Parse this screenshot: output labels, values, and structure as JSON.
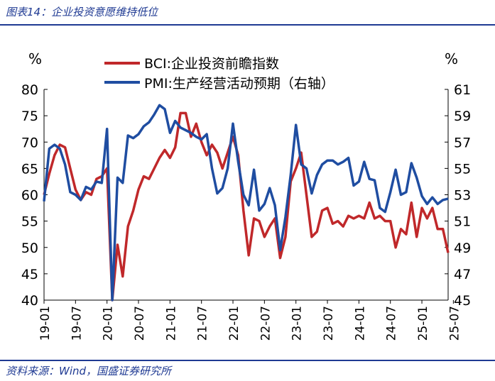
{
  "header": {
    "title": "图表14：企业投资意愿维持低位"
  },
  "footer": {
    "source": "资料来源：Wind，国盛证券研究所"
  },
  "colors": {
    "accent": "#1f3a93",
    "bci": "#c0282a",
    "pmi": "#1f4da1"
  },
  "chart_data": {
    "type": "line",
    "left_unit": "%",
    "right_unit": "%",
    "x_ticks": [
      "19-01",
      "19-07",
      "20-01",
      "20-07",
      "21-01",
      "21-07",
      "22-01",
      "22-07",
      "23-01",
      "23-07",
      "24-01",
      "24-07",
      "25-01",
      "25-07"
    ],
    "left_axis": {
      "ylim": [
        40,
        80
      ],
      "ticks": [
        40,
        45,
        50,
        55,
        60,
        65,
        70,
        75,
        80
      ]
    },
    "right_axis": {
      "ylim": [
        45,
        61
      ],
      "ticks": [
        45,
        47,
        49,
        51,
        53,
        55,
        57,
        59,
        61
      ]
    },
    "grid": false,
    "legend_position": "top-center",
    "series": [
      {
        "name": "BCI:企业投资前瞻指数",
        "axis": "left",
        "values": [
          60,
          64,
          67.5,
          69.5,
          69,
          65,
          61,
          59,
          60.5,
          60,
          63,
          63.5,
          65,
          39,
          50.5,
          44.5,
          54,
          57,
          61,
          63.5,
          63,
          65,
          67,
          68.5,
          67,
          69,
          75.5,
          75.5,
          71,
          73.5,
          70,
          67.5,
          69.5,
          68,
          65,
          68,
          71,
          67.5,
          57,
          48.5,
          55.5,
          55,
          52,
          54,
          55.5,
          48,
          52,
          62.5,
          65,
          68,
          60,
          52,
          53,
          57,
          57.5,
          54.5,
          55,
          54,
          56,
          55.5,
          56,
          55.5,
          58.5,
          55.5,
          56,
          55,
          55,
          50,
          53.5,
          52.5,
          58.5,
          52,
          57.5,
          55.5,
          57.5,
          53.5,
          53.5,
          49
        ]
      },
      {
        "name": "PMI:生产经营活动预期（右轴）",
        "axis": "right",
        "values": [
          52.5,
          56.5,
          56.8,
          56.5,
          55.3,
          53.2,
          53,
          52.6,
          53.6,
          53.4,
          54,
          53.9,
          58,
          43.9,
          54.3,
          53.9,
          57.5,
          57.3,
          57.6,
          58.2,
          58.5,
          59.1,
          59.8,
          59.5,
          57.7,
          58.6,
          58.1,
          57.9,
          57.7,
          57.4,
          57.2,
          57.6,
          55,
          53.1,
          53.5,
          55,
          58.4,
          55.5,
          53,
          52.2,
          54.9,
          51.8,
          52.3,
          53.5,
          52.2,
          48.8,
          51.3,
          54.5,
          58.3,
          55.3,
          55,
          53.1,
          54.5,
          55.3,
          55.6,
          55.6,
          55.3,
          55.5,
          55.8,
          53.7,
          54,
          55.5,
          54.2,
          54.1,
          52,
          51.7,
          53.2,
          54.9,
          53,
          53.2,
          55.4,
          54.3,
          52.9,
          52.3,
          52.8,
          52.3,
          52.6,
          52.7
        ]
      }
    ]
  }
}
